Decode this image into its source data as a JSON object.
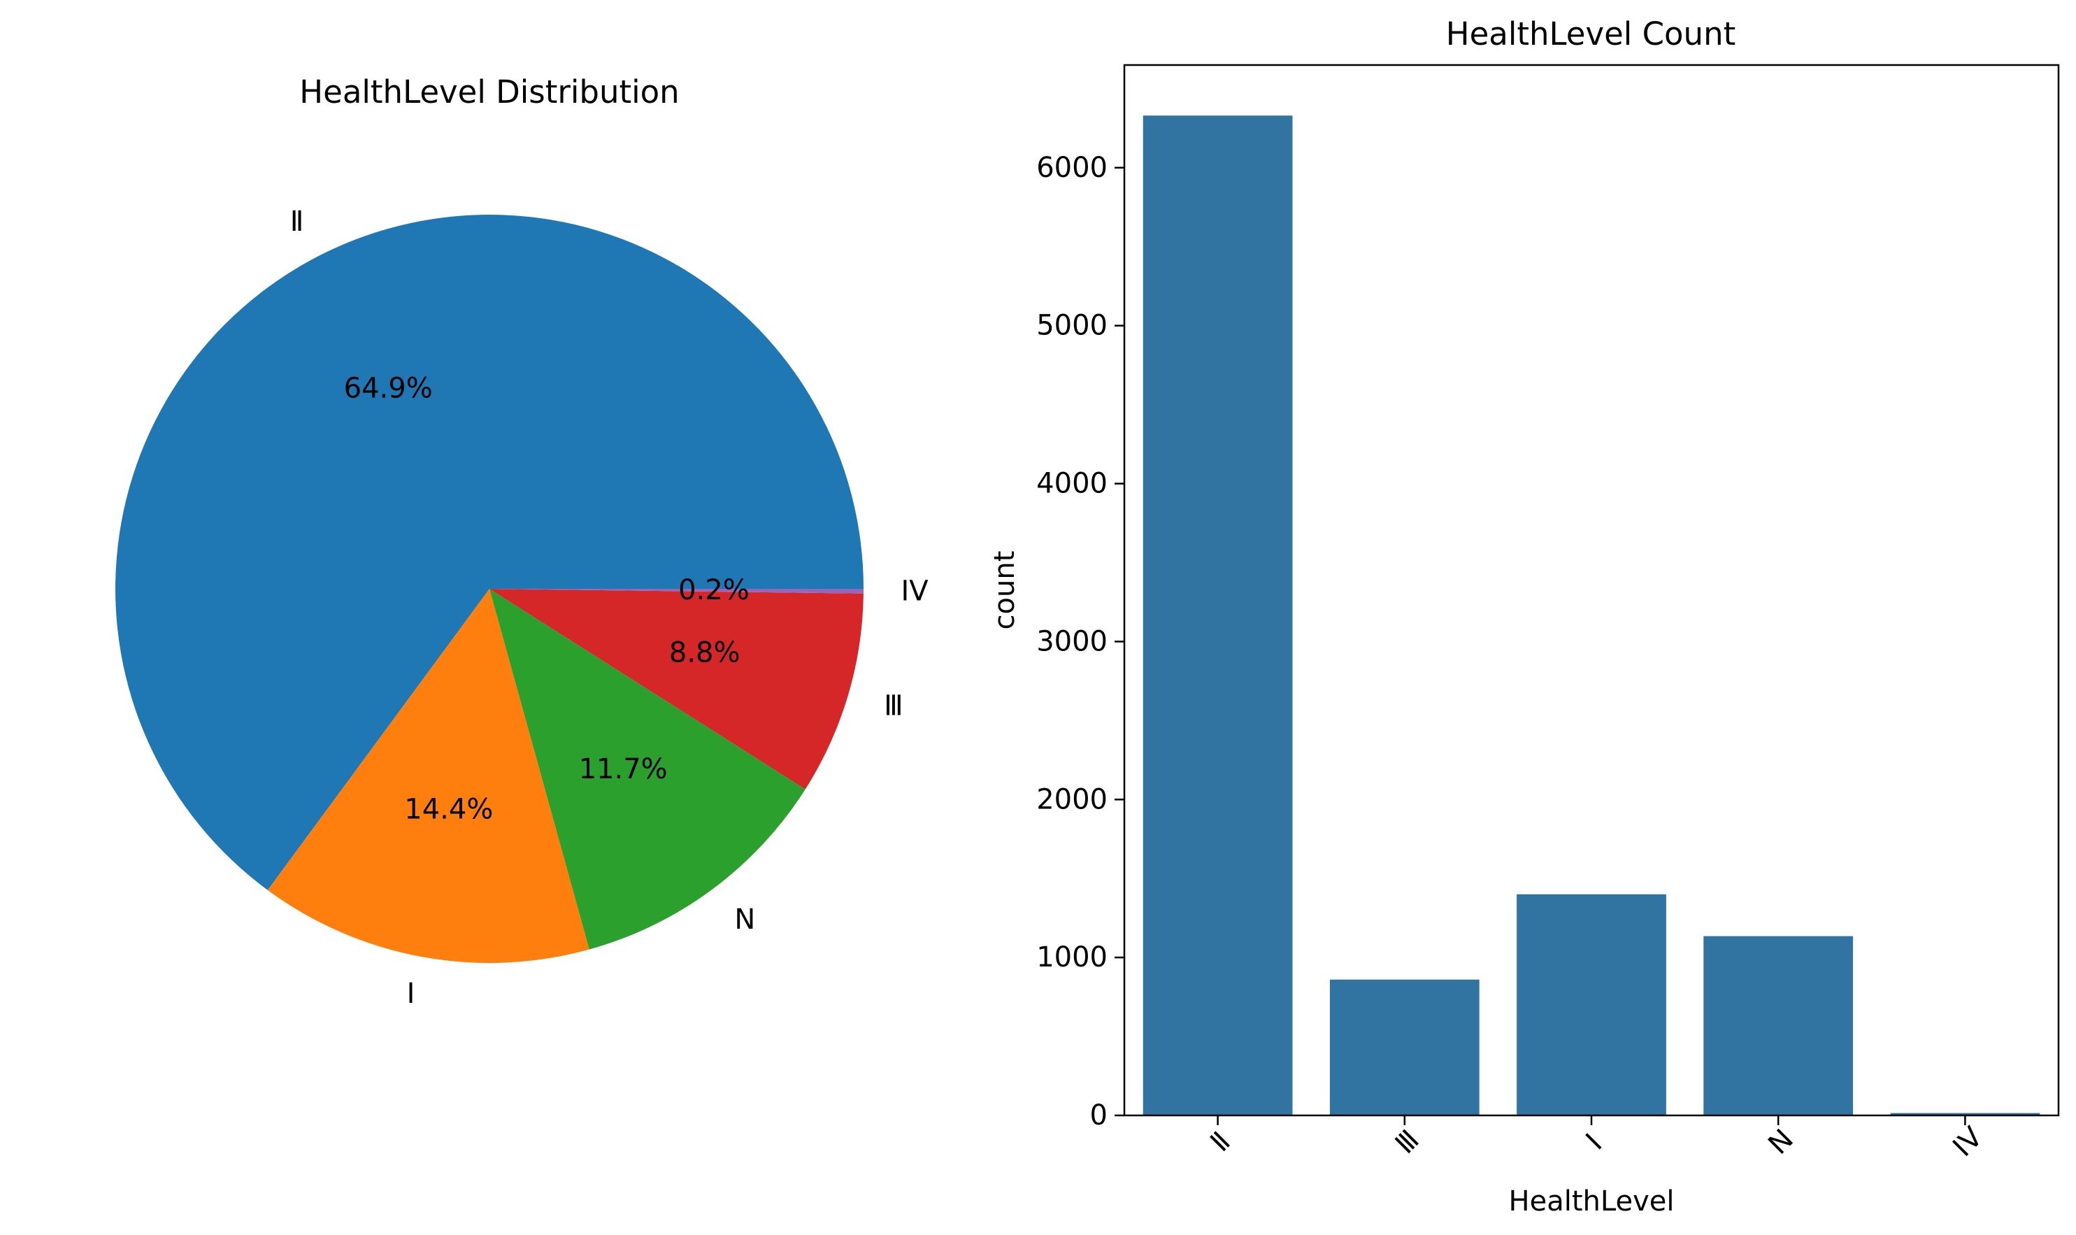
{
  "chart_data": [
    {
      "type": "pie",
      "title": "HealthLevel Distribution",
      "slices": [
        {
          "label": "Ⅱ",
          "pct_label": "64.9%",
          "value": 64.9,
          "color": "#1f77b4"
        },
        {
          "label": "I",
          "pct_label": "14.4%",
          "value": 14.4,
          "color": "#ff7f0e"
        },
        {
          "label": "N",
          "pct_label": "11.7%",
          "value": 11.7,
          "color": "#2ca02c"
        },
        {
          "label": "Ⅲ",
          "pct_label": "8.8%",
          "value": 8.8,
          "color": "#d62728"
        },
        {
          "label": "IV",
          "pct_label": "0.2%",
          "value": 0.2,
          "color": "#9467bd"
        }
      ]
    },
    {
      "type": "bar",
      "title": "HealthLevel Count",
      "xlabel": "HealthLevel",
      "ylabel": "count",
      "categories": [
        "Ⅱ",
        "Ⅲ",
        "I",
        "N",
        "IV"
      ],
      "values": [
        6330,
        860,
        1400,
        1135,
        15
      ],
      "ylim": [
        0,
        6650
      ],
      "yticks": [
        0,
        1000,
        2000,
        3000,
        4000,
        5000,
        6000
      ],
      "bar_color": "#3274a1"
    }
  ]
}
